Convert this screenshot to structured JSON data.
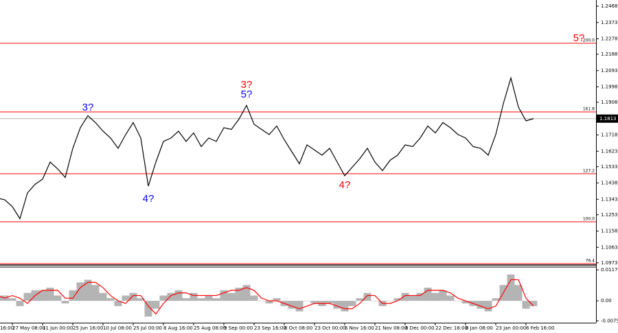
{
  "chart_data": [
    {
      "type": "line",
      "categories": [
        "16:00",
        null,
        null,
        null,
        "27 May 08:00",
        null,
        null,
        null,
        "11 Jun 00:00",
        null,
        null,
        null,
        "25 Jun 16:00",
        null,
        null,
        null,
        "10 Jul 08:00",
        null,
        null,
        null,
        "25 Jul 00:00",
        null,
        null,
        null,
        "8 Aug 16:00",
        null,
        null,
        null,
        "25 Aug 08:00",
        null,
        null,
        null,
        "9 Sep 00:00",
        null,
        null,
        null,
        "23 Sep 16:00",
        null,
        null,
        null,
        "8 Oct 08:00",
        null,
        null,
        null,
        "23 Oct 00:00",
        null,
        null,
        null,
        "6 Nov 16:00",
        null,
        null,
        null,
        "21 Nov 08:00",
        null,
        null,
        null,
        "8 Dec 00:00",
        null,
        null,
        null,
        "22 Dec 16:00",
        null,
        null,
        null,
        "8 Jan 08:00",
        null,
        null,
        null,
        "23 Jan 00:00",
        null,
        null,
        null,
        "6 Feb 16:00",
        null
      ],
      "series": [
        {
          "color": "#000000",
          "values": [
            1.13,
            1.133,
            1.135,
            1.134,
            1.13,
            1.123,
            1.138,
            1.143,
            1.146,
            1.156,
            1.152,
            1.147,
            1.164,
            1.176,
            1.183,
            1.179,
            1.174,
            1.17,
            1.164,
            1.172,
            1.179,
            1.17,
            1.142,
            1.156,
            1.168,
            1.17,
            1.174,
            1.168,
            1.173,
            1.165,
            1.17,
            1.168,
            1.176,
            1.175,
            1.181,
            1.189,
            1.178,
            1.175,
            1.172,
            1.177,
            1.169,
            1.162,
            1.155,
            1.166,
            1.163,
            1.16,
            1.164,
            1.156,
            1.148,
            1.153,
            1.158,
            1.164,
            1.156,
            1.151,
            1.157,
            1.16,
            1.166,
            1.165,
            1.17,
            1.177,
            1.173,
            1.179,
            1.176,
            1.172,
            1.17,
            1.165,
            1.164,
            1.16,
            1.172,
            1.19,
            1.205,
            1.188,
            1.18,
            1.1813
          ]
        }
      ],
      "ylim": [
        1.096,
        1.2504
      ],
      "yticks": [
        1.2468,
        1.2373,
        1.2278,
        1.2188,
        1.2093,
        1.1998,
        1.1908,
        1.1718,
        1.1623,
        1.1533,
        1.1438,
        1.1343,
        1.1253,
        1.1158,
        1.1063,
        1.0973
      ],
      "last_price": 1.1813,
      "levels": [
        {
          "value": 1.2252,
          "label": "200.0"
        },
        {
          "value": 1.1852,
          "label": "161.8"
        },
        {
          "value": 1.1492,
          "label": "127.2"
        },
        {
          "value": 1.1212,
          "label": "100.0"
        },
        {
          "value": 1.0968,
          "label": "76.4"
        }
      ],
      "level_color": "#ff0000",
      "annotations": [
        {
          "text": "3?",
          "color": "#0000ff",
          "at": 14,
          "price": 1.1876
        },
        {
          "text": "4?",
          "color": "#0000ff",
          "at": 22,
          "price": 1.1344
        },
        {
          "text": "5?",
          "color": "#0000ff",
          "at": 35,
          "price": 1.1952
        },
        {
          "text": "3?",
          "color": "#ff0000",
          "at": 35,
          "price": 1.2008
        },
        {
          "text": "4?",
          "color": "#ff0000",
          "at": 48,
          "price": 1.1424
        },
        {
          "text": "5?",
          "color": "#ff0000",
          "at": 79,
          "price": 1.228
        }
      ]
    },
    {
      "type": "bar",
      "series": [
        {
          "color": "#b4b4b4",
          "values": [
            0.001,
            0.002,
            0.002,
            0.002,
            0.001,
            -0.002,
            0.003,
            0.004,
            0.004,
            0.005,
            0.002,
            -0.001,
            0.004,
            0.007,
            0.008,
            0.006,
            0.003,
            0.001,
            -0.002,
            0.002,
            0.003,
            0.001,
            -0.006,
            -0.003,
            0.002,
            0.003,
            0.004,
            0.001,
            0.003,
            0.001,
            0.002,
            0.001,
            0.004,
            0.003,
            0.005,
            0.006,
            0.002,
            0.0,
            -0.001,
            0.001,
            -0.002,
            -0.003,
            -0.004,
            0.0,
            -0.001,
            -0.002,
            -0.001,
            -0.003,
            -0.004,
            -0.002,
            0.001,
            0.003,
            0.0,
            -0.002,
            0.0,
            0.001,
            0.003,
            0.002,
            0.003,
            0.005,
            0.003,
            0.004,
            0.002,
            0.0,
            -0.001,
            -0.002,
            -0.003,
            -0.004,
            0.001,
            0.006,
            0.01,
            0.006,
            -0.003,
            -0.002
          ]
        },
        {
          "color": "#ff0000",
          "type": "line",
          "values": [
            0.001,
            0.001,
            0.002,
            0.001,
            0.002,
            0.001,
            -0.001,
            0.002,
            0.004,
            0.004,
            0.004,
            0.001,
            0.001,
            0.005,
            0.007,
            0.007,
            0.005,
            0.002,
            0.0,
            -0.001,
            0.002,
            0.002,
            -0.002,
            -0.005,
            -0.001,
            0.002,
            0.003,
            0.003,
            0.002,
            0.002,
            0.002,
            0.002,
            0.003,
            0.004,
            0.004,
            0.005,
            0.004,
            0.001,
            0.0,
            0.0,
            -0.001,
            -0.002,
            -0.003,
            -0.002,
            -0.001,
            -0.001,
            -0.001,
            -0.002,
            -0.003,
            -0.003,
            -0.001,
            0.002,
            0.002,
            -0.001,
            -0.001,
            0.0,
            0.002,
            0.002,
            0.002,
            0.004,
            0.004,
            0.004,
            0.003,
            0.001,
            0.0,
            -0.001,
            -0.002,
            -0.003,
            -0.002,
            0.003,
            0.008,
            0.008,
            0.001,
            -0.002
          ]
        }
      ],
      "ylim": [
        -0.0083,
        0.0128
      ],
      "yticks": [
        0.01174,
        {
          "value": 0,
          "label": "0.00"
        },
        -0.00759
      ]
    }
  ]
}
